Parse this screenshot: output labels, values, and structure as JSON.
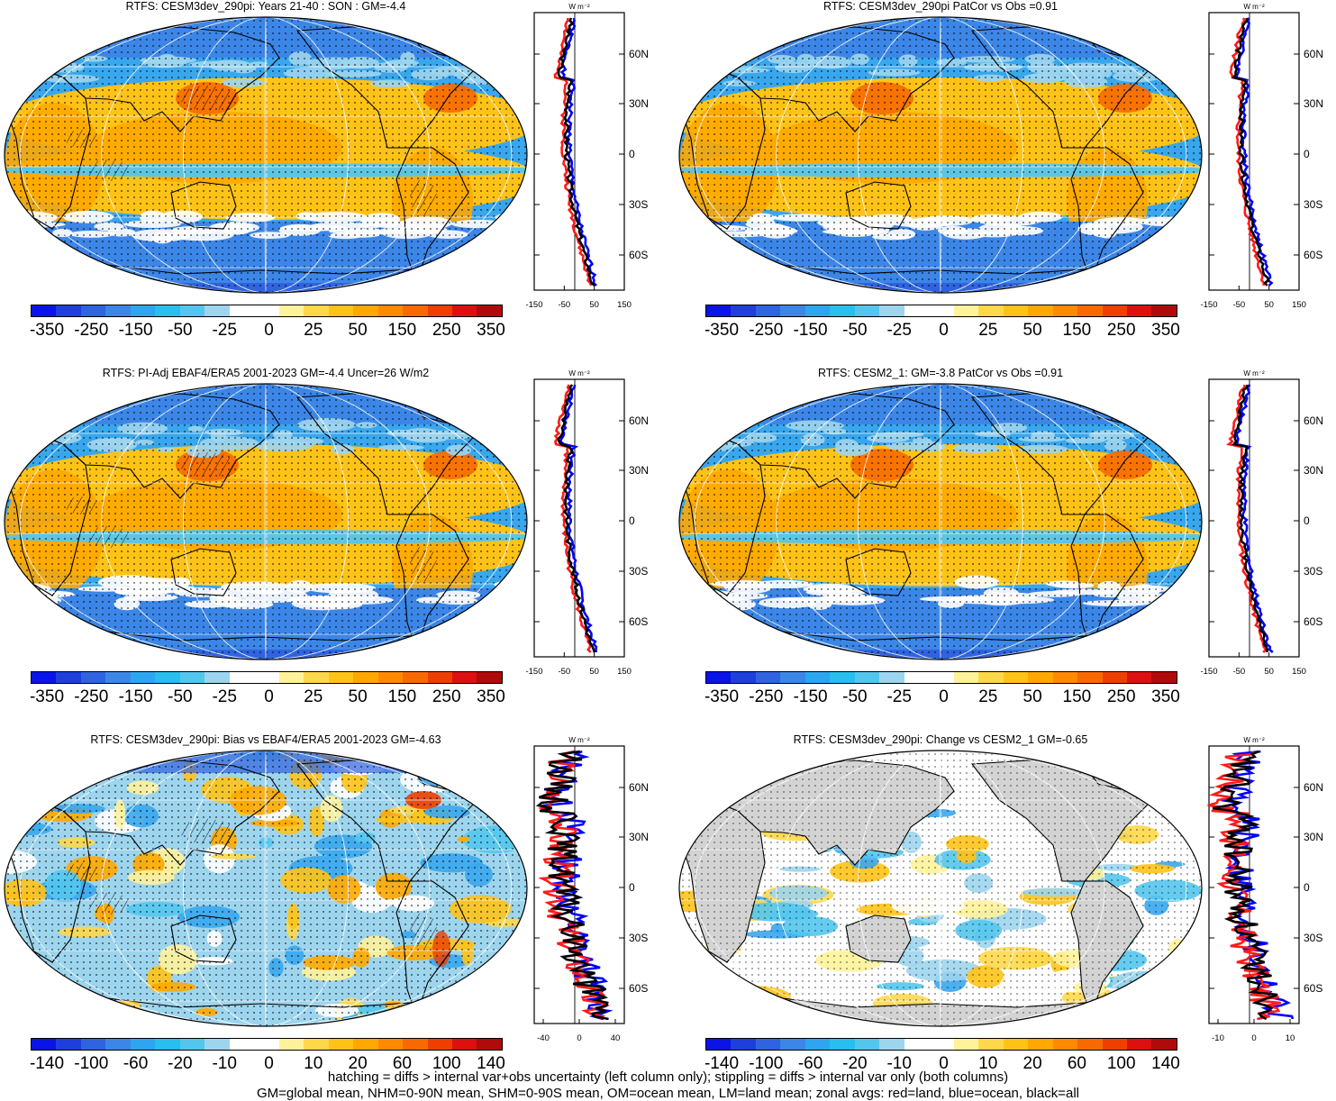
{
  "colors": {
    "negative": [
      "#0a14e6",
      "#1e3fdc",
      "#2f63e0",
      "#3c86e8",
      "#2ea6ef",
      "#27bfee",
      "#54c6ee",
      "#9dd5ee",
      "#ffffff"
    ],
    "positive": [
      "#ffffff",
      "#fff29a",
      "#ffd84a",
      "#ffc318",
      "#ffa800",
      "#ff8a00",
      "#f86a00",
      "#ee3f00",
      "#dd1010",
      "#b00a0a"
    ],
    "land": "#d3d3d3",
    "zonal_land": "#ff1a1a",
    "zonal_ocean": "#0000ff",
    "zonal_all": "#000000"
  },
  "panels": [
    {
      "title": "RTFS: CESM3dev_290pi: Years 21-40 : SON : GM=-4.4",
      "zonal_unit": "W m⁻²",
      "lat_labels": [
        "60N",
        "30N",
        "0",
        "30S",
        "60S"
      ],
      "zonal_ticks": [
        "-150",
        "-50",
        "50",
        "150"
      ],
      "cbar_labels": [
        "-350",
        "-250",
        "-150",
        "-50",
        "-25",
        "0",
        "25",
        "50",
        "150",
        "250",
        "350"
      ],
      "style": "full"
    },
    {
      "title": "RTFS: CESM3dev_290pi PatCor vs Obs =0.91",
      "zonal_unit": "W m⁻²",
      "lat_labels": [
        "60N",
        "30N",
        "0",
        "30S",
        "60S"
      ],
      "zonal_ticks": [
        "-150",
        "-50",
        "50",
        "150"
      ],
      "cbar_labels": [
        "-350",
        "-250",
        "-150",
        "-50",
        "-25",
        "0",
        "25",
        "50",
        "150",
        "250",
        "350"
      ],
      "style": "full"
    },
    {
      "title": "RTFS: PI-Adj EBAF4/ERA5 2001-2023 GM=-4.4 Uncer=26 W/m2",
      "zonal_unit": "W m⁻²",
      "lat_labels": [
        "60N",
        "30N",
        "0",
        "30S",
        "60S"
      ],
      "zonal_ticks": [
        "-150",
        "-50",
        "50",
        "150"
      ],
      "cbar_labels": [
        "-350",
        "-250",
        "-150",
        "-50",
        "-25",
        "0",
        "25",
        "50",
        "150",
        "250",
        "350"
      ],
      "style": "full"
    },
    {
      "title": "RTFS: CESM2_1: GM=-3.8 PatCor vs Obs =0.91",
      "zonal_unit": "W m⁻²",
      "lat_labels": [
        "60N",
        "30N",
        "0",
        "30S",
        "60S"
      ],
      "zonal_ticks": [
        "-150",
        "-50",
        "50",
        "150"
      ],
      "cbar_labels": [
        "-350",
        "-250",
        "-150",
        "-50",
        "-25",
        "0",
        "25",
        "50",
        "150",
        "250",
        "350"
      ],
      "style": "full"
    },
    {
      "title": "RTFS: CESM3dev_290pi: Bias vs EBAF4/ERA5 2001-2023  GM=-4.63",
      "zonal_unit": "W m⁻²",
      "lat_labels": [
        "60N",
        "30N",
        "0",
        "30S",
        "60S"
      ],
      "zonal_ticks": [
        "-40",
        "0",
        "40"
      ],
      "cbar_labels": [
        "-140",
        "-100",
        "-60",
        "-20",
        "-10",
        "0",
        "10",
        "20",
        "60",
        "100",
        "140"
      ],
      "style": "bias"
    },
    {
      "title": "RTFS: CESM3dev_290pi: Change vs CESM2_1 GM=-0.65",
      "zonal_unit": "W m⁻²",
      "lat_labels": [
        "60N",
        "30N",
        "0",
        "30S",
        "60S"
      ],
      "zonal_ticks": [
        "-10",
        "0",
        "10"
      ],
      "cbar_labels": [
        "-140",
        "-100",
        "-60",
        "-20",
        "-10",
        "0",
        "10",
        "20",
        "60",
        "100",
        "140"
      ],
      "style": "change"
    }
  ],
  "footer": {
    "line1": "hatching = diffs > internal var+obs uncertainty (left column only); stippling = diffs > internal var only (both columns)",
    "line2": "GM=global mean, NHM=0-90N mean, SHM=0-90S mean, OM=ocean mean, LM=land mean; zonal avgs: red=land, blue=ocean, black=all"
  }
}
